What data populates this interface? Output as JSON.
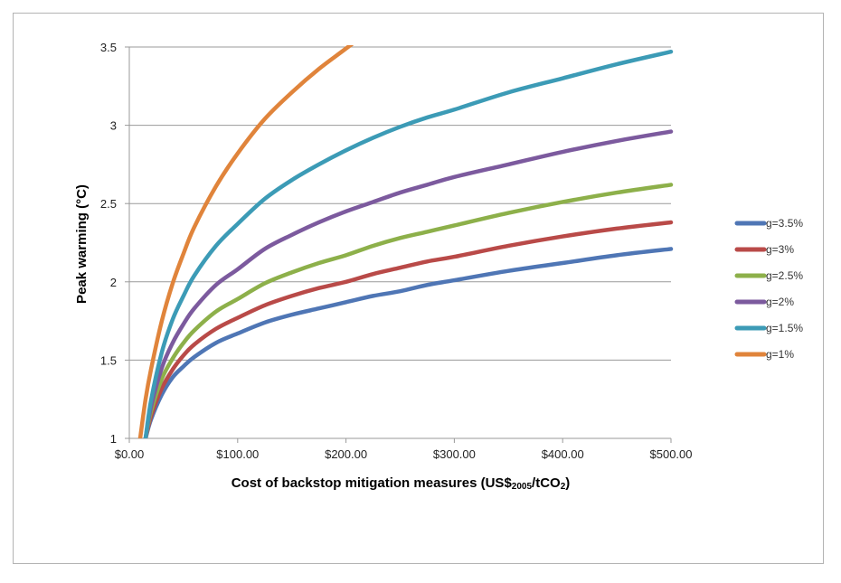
{
  "chart_data": {
    "type": "line",
    "title": "",
    "xlabel_parts": {
      "main": "Cost of backstop mitigation measures (US$",
      "sub": "2005",
      "mid": "/tCO",
      "sub2": "2",
      "end": ")"
    },
    "ylabel": "Peak warming (°C)",
    "xlim": [
      0,
      500
    ],
    "ylim": [
      1,
      3.5
    ],
    "x_ticks": [
      0,
      100,
      200,
      300,
      400,
      500
    ],
    "x_tick_labels": [
      "$0.00",
      "$100.00",
      "$200.00",
      "$300.00",
      "$400.00",
      "$500.00"
    ],
    "y_ticks": [
      1,
      1.5,
      2,
      2.5,
      3,
      3.5
    ],
    "y_tick_labels": [
      "1",
      "1.5",
      "2",
      "2.5",
      "3",
      "3.5"
    ],
    "grid": "horizontal",
    "legend_position": "right",
    "x": [
      10,
      15,
      20,
      30,
      40,
      50,
      60,
      80,
      100,
      125,
      150,
      175,
      200,
      225,
      250,
      275,
      300,
      350,
      400,
      450,
      500
    ],
    "series": [
      {
        "name": "g=3.5%",
        "color": "#4f76b5",
        "values": [
          null,
          1.0,
          1.12,
          1.28,
          1.39,
          1.46,
          1.52,
          1.61,
          1.67,
          1.74,
          1.79,
          1.83,
          1.87,
          1.91,
          1.94,
          1.98,
          2.01,
          2.07,
          2.12,
          2.17,
          2.21
        ]
      },
      {
        "name": "g=3%",
        "color": "#b94a48",
        "values": [
          null,
          1.0,
          1.14,
          1.32,
          1.44,
          1.53,
          1.6,
          1.7,
          1.77,
          1.85,
          1.91,
          1.96,
          2.0,
          2.05,
          2.09,
          2.13,
          2.16,
          2.23,
          2.29,
          2.34,
          2.38
        ]
      },
      {
        "name": "g=2.5%",
        "color": "#8db04a",
        "values": [
          null,
          1.0,
          1.17,
          1.38,
          1.51,
          1.61,
          1.69,
          1.81,
          1.89,
          1.99,
          2.06,
          2.12,
          2.17,
          2.23,
          2.28,
          2.32,
          2.36,
          2.44,
          2.51,
          2.57,
          2.62
        ]
      },
      {
        "name": "g=2%",
        "color": "#7c5a9e",
        "values": [
          null,
          1.0,
          1.2,
          1.45,
          1.61,
          1.73,
          1.83,
          1.98,
          2.08,
          2.21,
          2.3,
          2.38,
          2.45,
          2.51,
          2.57,
          2.62,
          2.67,
          2.75,
          2.83,
          2.9,
          2.96
        ]
      },
      {
        "name": "g=1.5%",
        "color": "#3c9bb6",
        "values": [
          null,
          1.0,
          1.24,
          1.55,
          1.76,
          1.91,
          2.04,
          2.23,
          2.37,
          2.53,
          2.65,
          2.75,
          2.84,
          2.92,
          2.99,
          3.05,
          3.1,
          3.21,
          3.3,
          3.39,
          3.47
        ]
      },
      {
        "name": "g=1%",
        "color": "#e0843b",
        "values": [
          1.0,
          1.25,
          1.44,
          1.75,
          1.99,
          2.18,
          2.35,
          2.61,
          2.82,
          3.04,
          3.21,
          3.36,
          3.49,
          null,
          null,
          null,
          null,
          null,
          null,
          null,
          null
        ]
      }
    ]
  }
}
